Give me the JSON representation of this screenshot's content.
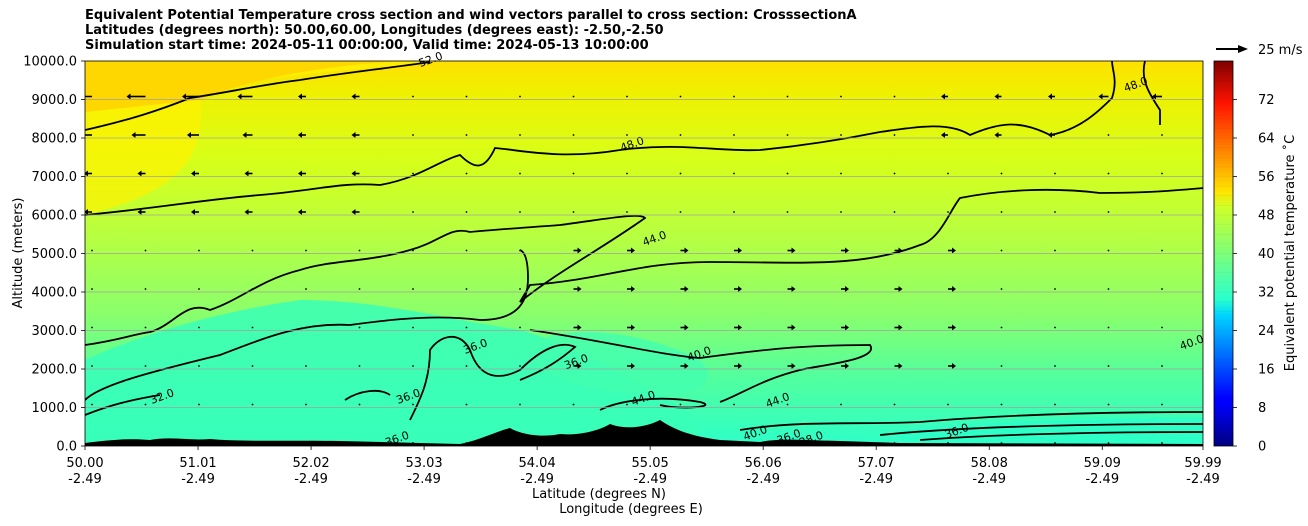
{
  "header": {
    "title_lines": [
      "Equivalent Potential Temperature cross section and wind vectors parallel to cross section: CrosssectionA",
      "Latitudes (degrees north): 50.00,60.00, Longitudes (degrees east): -2.50,-2.50",
      "Simulation start time: 2024-05-11 00:00:00, Valid time: 2024-05-13 10:00:00"
    ]
  },
  "quiver_key": {
    "label": "25 m/s"
  },
  "chart_data": {
    "type": "heatmap",
    "title": "Equivalent Potential Temperature cross section and wind vectors parallel to cross section: CrosssectionA",
    "xlabel": "Latitude (degrees N)",
    "xlabel2": "Longitude (degrees E)",
    "ylabel": "Altitude (meters)",
    "ylim": [
      0,
      10000
    ],
    "xlim": [
      50.0,
      59.99
    ],
    "yticks": [
      "0.0",
      "1000.0",
      "2000.0",
      "3000.0",
      "4000.0",
      "5000.0",
      "6000.0",
      "7000.0",
      "8000.0",
      "9000.0",
      "10000.0"
    ],
    "xticks": [
      {
        "lat": "50.00",
        "lon": "-2.49"
      },
      {
        "lat": "51.01",
        "lon": "-2.49"
      },
      {
        "lat": "52.02",
        "lon": "-2.49"
      },
      {
        "lat": "53.03",
        "lon": "-2.49"
      },
      {
        "lat": "54.04",
        "lon": "-2.49"
      },
      {
        "lat": "55.05",
        "lon": "-2.49"
      },
      {
        "lat": "56.06",
        "lon": "-2.49"
      },
      {
        "lat": "57.07",
        "lon": "-2.49"
      },
      {
        "lat": "58.08",
        "lon": "-2.49"
      },
      {
        "lat": "59.09",
        "lon": "-2.49"
      },
      {
        "lat": "59.99",
        "lon": "-2.49"
      }
    ],
    "grid": "horizontal",
    "colorbar": {
      "label": "Equivalent potential temperature ˚C",
      "ticks": [
        "0",
        "8",
        "16",
        "24",
        "32",
        "40",
        "48",
        "56",
        "64",
        "72"
      ],
      "range": [
        0,
        80
      ],
      "colormap": "jet"
    },
    "contour_labels": [
      {
        "text": "52.0",
        "lat": 53.1,
        "alt": 9950
      },
      {
        "text": "48.0",
        "lat": 54.9,
        "alt": 7750
      },
      {
        "text": "48.0",
        "lat": 59.4,
        "alt": 9300
      },
      {
        "text": "44.0",
        "lat": 55.1,
        "alt": 5300
      },
      {
        "text": "40.0",
        "lat": 55.5,
        "alt": 2300
      },
      {
        "text": "40.0",
        "lat": 59.9,
        "alt": 2600
      },
      {
        "text": "36.0",
        "lat": 53.5,
        "alt": 2500
      },
      {
        "text": "36.0",
        "lat": 54.4,
        "alt": 2100
      },
      {
        "text": "36.0",
        "lat": 52.9,
        "alt": 1200
      },
      {
        "text": "36.0",
        "lat": 52.8,
        "alt": 100
      },
      {
        "text": "36.0",
        "lat": 57.8,
        "alt": 300
      },
      {
        "text": "32.0",
        "lat": 50.7,
        "alt": 1200
      },
      {
        "text": "44.0",
        "lat": 55.0,
        "alt": 1150
      },
      {
        "text": "44.0",
        "lat": 56.2,
        "alt": 1100
      },
      {
        "text": "40.0",
        "lat": 56.0,
        "alt": 250
      },
      {
        "text": "36.0",
        "lat": 56.3,
        "alt": 150
      },
      {
        "text": "28.0",
        "lat": 56.5,
        "alt": 100
      }
    ]
  }
}
